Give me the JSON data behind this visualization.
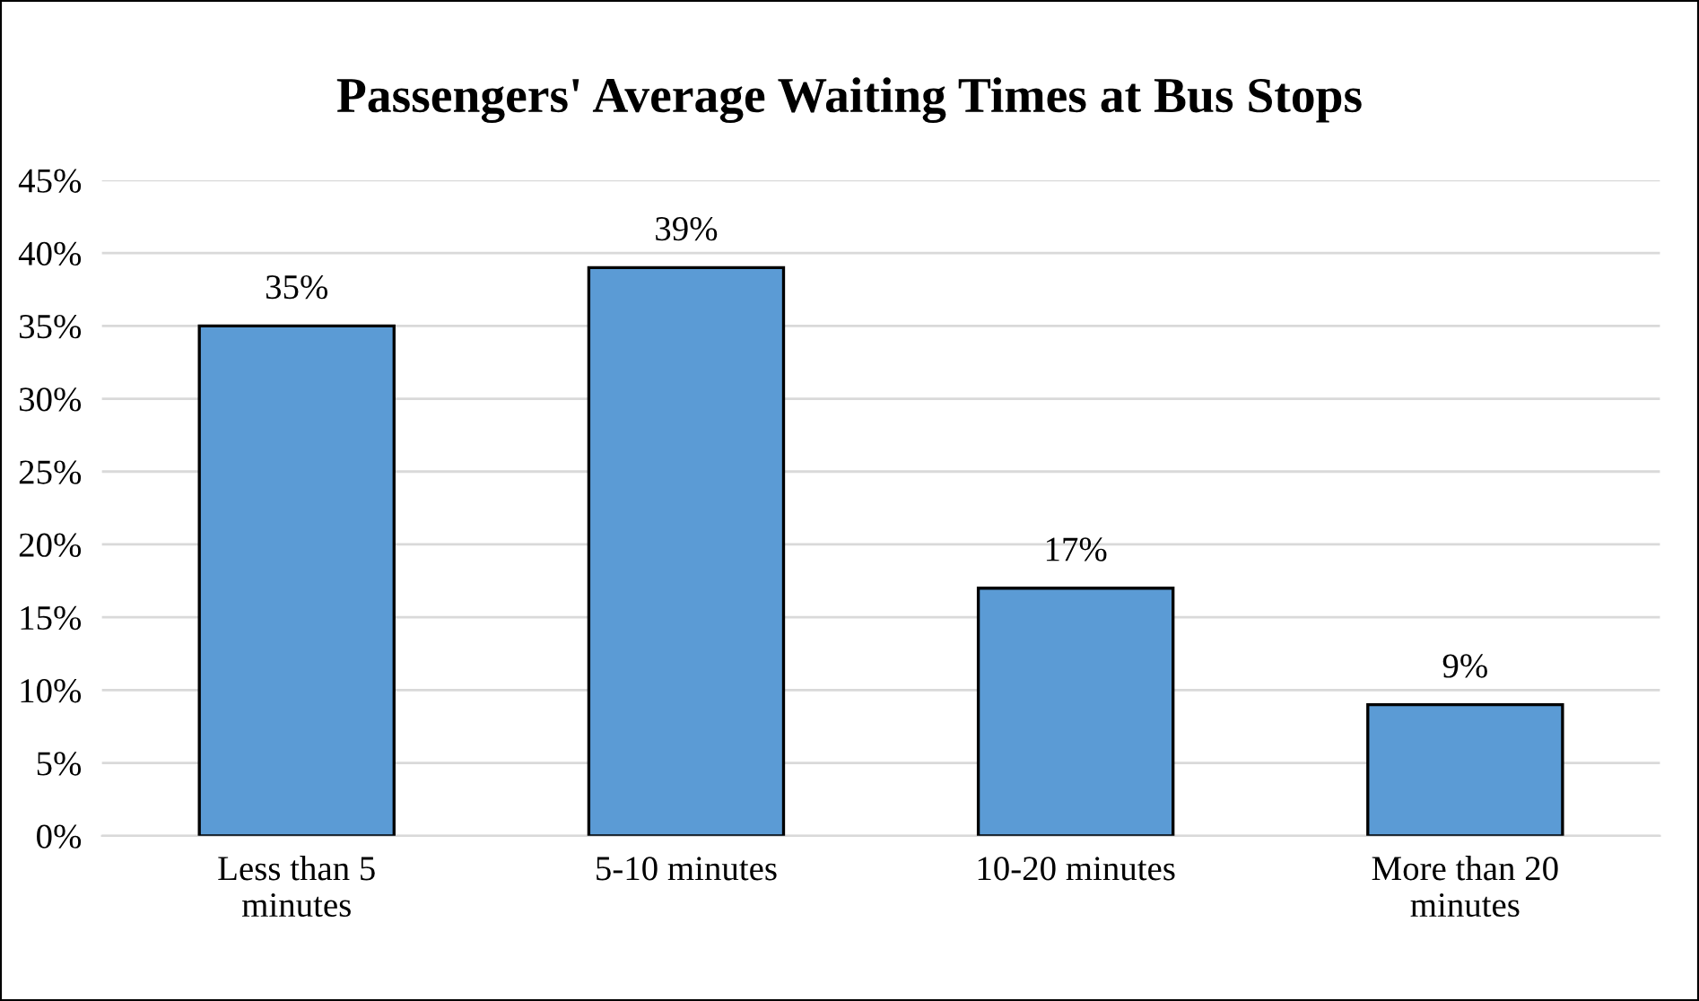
{
  "chart_data": {
    "type": "bar",
    "title": "Passengers' Average Waiting Times at Bus Stops",
    "categories": [
      "Less than 5\nminutes",
      "5-10 minutes",
      "10-20 minutes",
      "More than 20\nminutes"
    ],
    "values": [
      35,
      39,
      17,
      9
    ],
    "value_labels": [
      "35%",
      "39%",
      "17%",
      "9%"
    ],
    "color": "#5b9bd5",
    "ylim": [
      0,
      45
    ],
    "yticks": [
      {
        "value": 0,
        "label": "0%"
      },
      {
        "value": 5,
        "label": "5%"
      },
      {
        "value": 10,
        "label": "10%"
      },
      {
        "value": 15,
        "label": "15%"
      },
      {
        "value": 20,
        "label": "20%"
      },
      {
        "value": 25,
        "label": "25%"
      },
      {
        "value": 30,
        "label": "30%"
      },
      {
        "value": 35,
        "label": "35%"
      },
      {
        "value": 40,
        "label": "40%"
      },
      {
        "value": 45,
        "label": "45%"
      }
    ],
    "grid": "y"
  }
}
